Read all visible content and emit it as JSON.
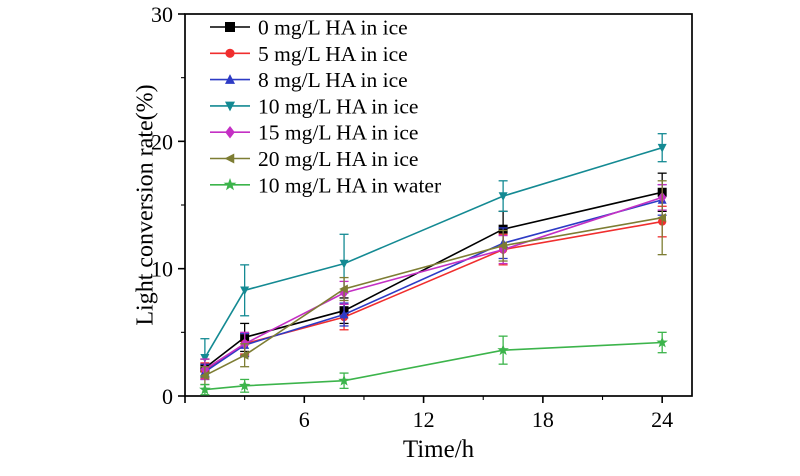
{
  "chart_data": {
    "type": "line",
    "title": "",
    "xlabel": "Time/h",
    "ylabel": "Light conversion rate(%)",
    "xlim": [
      0,
      25.5
    ],
    "ylim": [
      0,
      30
    ],
    "grid": false,
    "legend_position": "top-left",
    "xticks": [
      {
        "v": 0,
        "label": ""
      },
      {
        "v": 6,
        "label": "6"
      },
      {
        "v": 12,
        "label": "12"
      },
      {
        "v": 18,
        "label": "18"
      },
      {
        "v": 24,
        "label": "24"
      }
    ],
    "yticks": [
      {
        "v": 0,
        "label": "0"
      },
      {
        "v": 10,
        "label": "10"
      },
      {
        "v": 20,
        "label": "20"
      },
      {
        "v": 30,
        "label": "30"
      }
    ],
    "x_minor_ticks": [
      3,
      9,
      15,
      21
    ],
    "y_minor_ticks": [
      5,
      15,
      25
    ],
    "x": [
      1,
      3,
      8,
      16,
      24
    ],
    "series": [
      {
        "name": "0 mg/L HA in ice",
        "color": "#000000",
        "marker": "square",
        "values": [
          2.2,
          4.6,
          6.7,
          13.1,
          16.0
        ],
        "errors": [
          0.7,
          1.1,
          1.0,
          1.4,
          1.5
        ]
      },
      {
        "name": "5 mg/L HA in ice",
        "color": "#f02e2e",
        "marker": "circle",
        "values": [
          2.0,
          4.1,
          6.2,
          11.5,
          13.7
        ],
        "errors": [
          0.6,
          0.8,
          1.0,
          1.2,
          1.2
        ]
      },
      {
        "name": "8 mg/L HA in ice",
        "color": "#2d3bc5",
        "marker": "triangle-up",
        "values": [
          1.9,
          4.0,
          6.4,
          12.0,
          15.4
        ],
        "errors": [
          0.6,
          0.9,
          0.9,
          1.2,
          1.2
        ]
      },
      {
        "name": "10 mg/L HA in ice",
        "color": "#148a93",
        "marker": "triangle-down",
        "values": [
          3.0,
          8.3,
          10.4,
          15.7,
          19.5
        ],
        "errors": [
          1.5,
          2.0,
          2.3,
          1.2,
          1.1
        ]
      },
      {
        "name": "15 mg/L HA in ice",
        "color": "#c430c4",
        "marker": "diamond",
        "values": [
          2.1,
          4.1,
          8.1,
          11.5,
          15.6
        ],
        "errors": [
          0.8,
          0.9,
          0.9,
          1.1,
          1.0
        ]
      },
      {
        "name": "20 mg/L HA in ice",
        "color": "#7d7d33",
        "marker": "triangle-left",
        "values": [
          1.6,
          3.2,
          8.4,
          11.8,
          14.0
        ],
        "errors": [
          0.7,
          0.9,
          0.9,
          1.2,
          2.9
        ]
      },
      {
        "name": "10 mg/L HA in water",
        "color": "#3cb44b",
        "marker": "star",
        "values": [
          0.5,
          0.8,
          1.2,
          3.6,
          4.2
        ],
        "errors": [
          0.4,
          0.5,
          0.6,
          1.1,
          0.8
        ]
      }
    ]
  }
}
